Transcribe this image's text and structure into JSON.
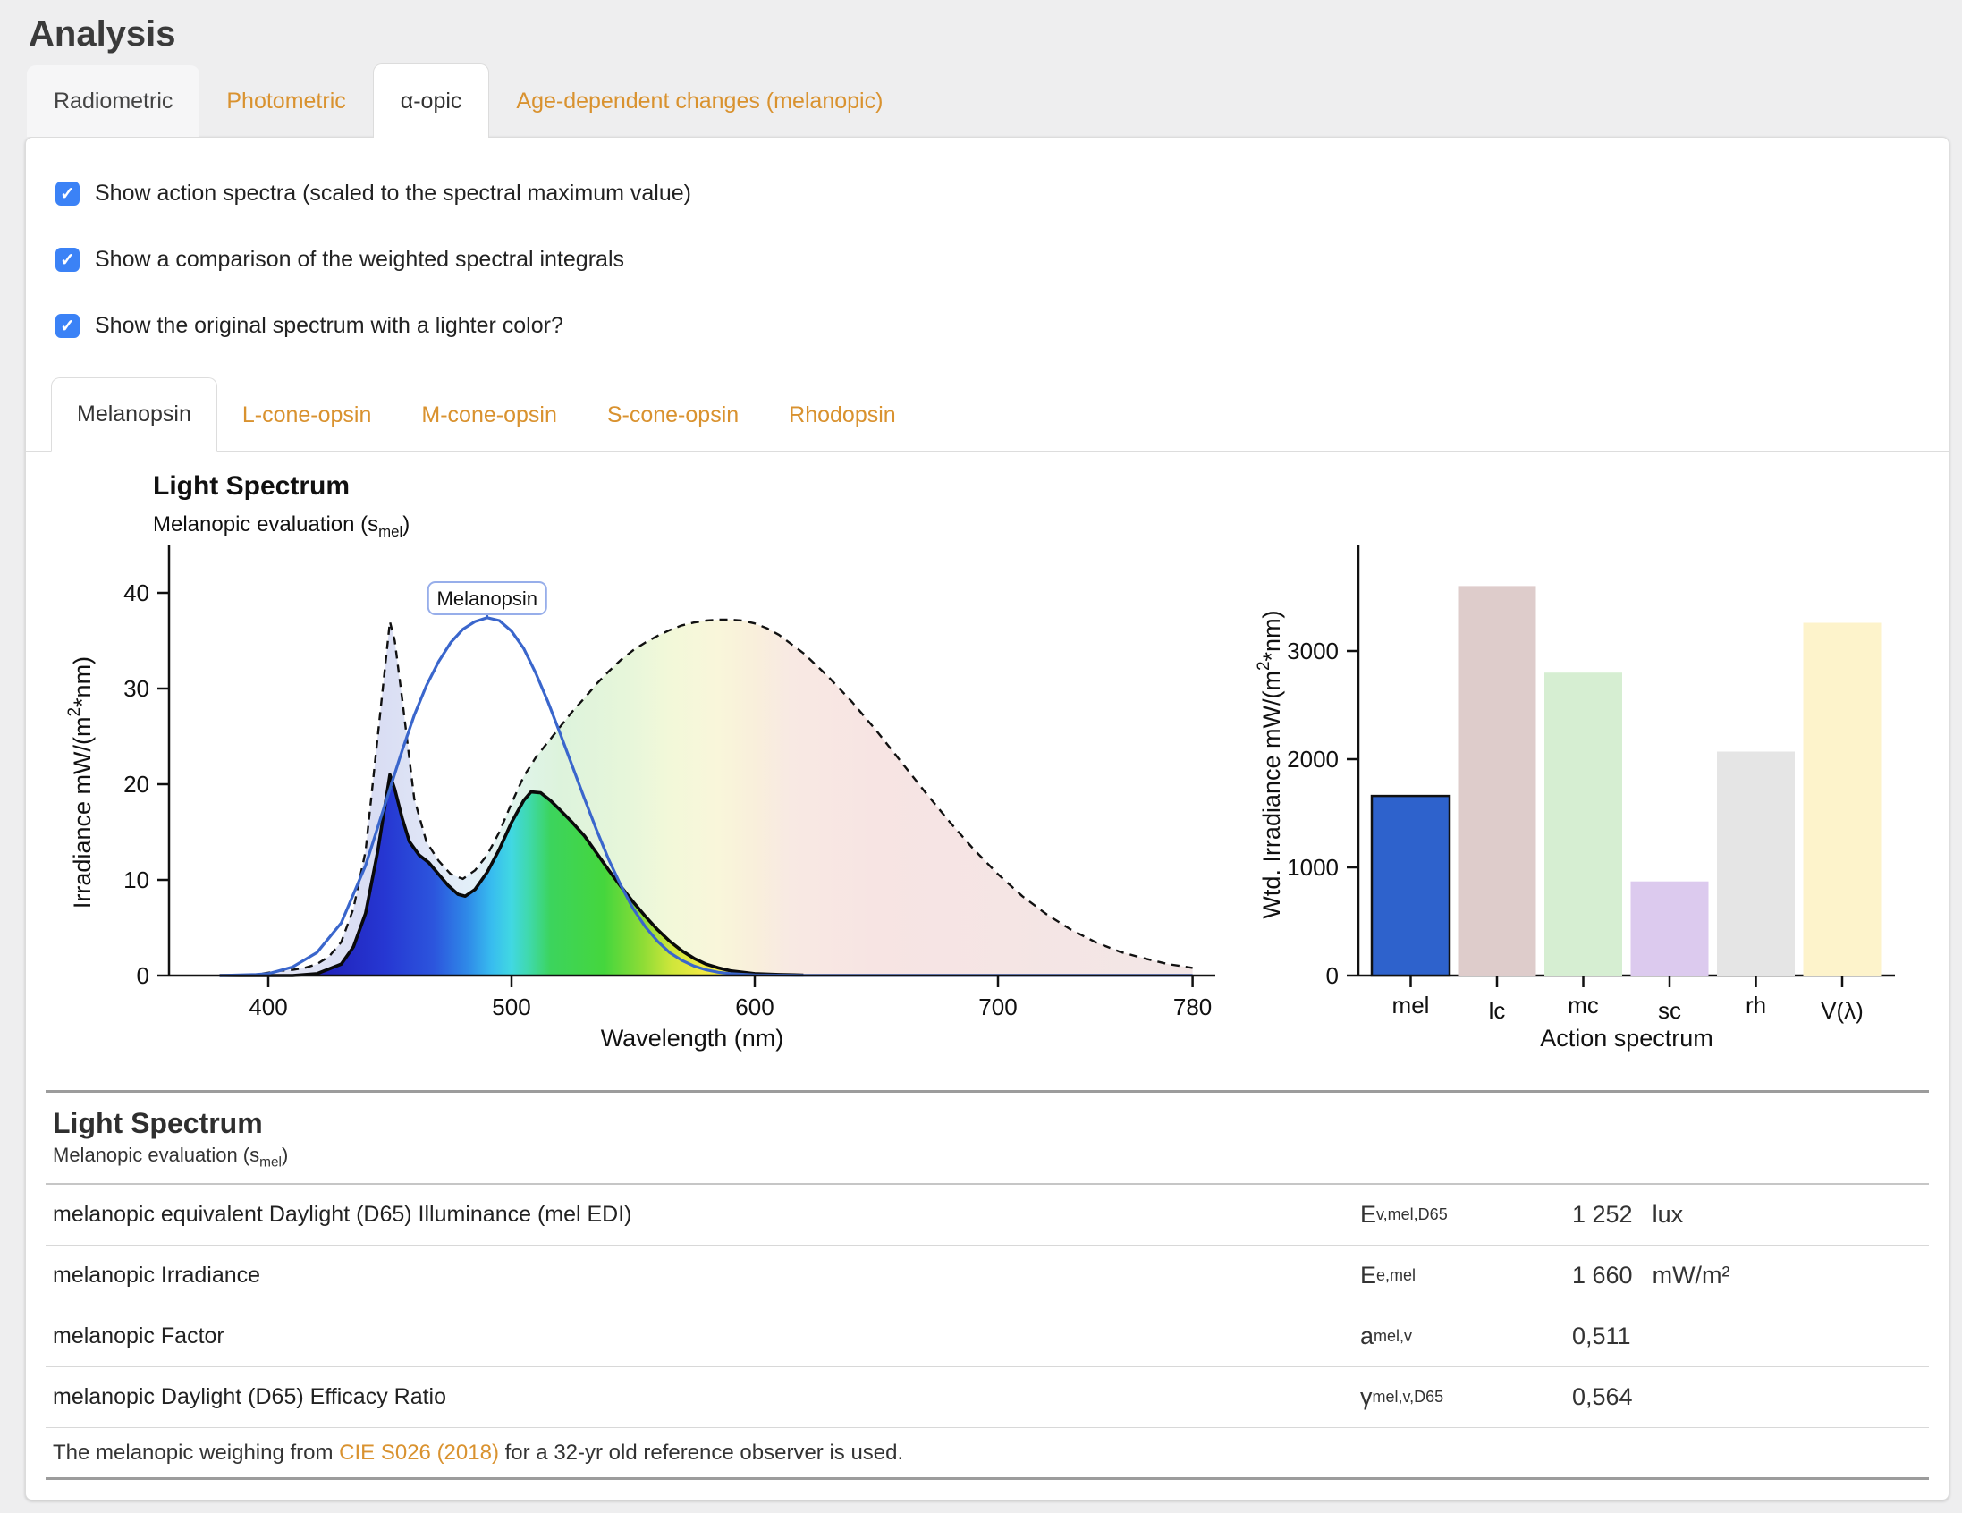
{
  "page": {
    "title": "Analysis"
  },
  "colors": {
    "accent_orange": "#d9922f",
    "checkbox_blue": "#3b82f6",
    "mel_line_blue": "#3a66cc",
    "annotation_text_blue": "#6d8ee2",
    "annotation_border_blue": "#97aeea",
    "page_bg": "#eeeeef"
  },
  "tabs": {
    "items": [
      {
        "label": "Radiometric",
        "state": "hovered"
      },
      {
        "label": "Photometric",
        "state": "link"
      },
      {
        "label": "α-opic",
        "state": "active"
      },
      {
        "label": "Age-dependent changes (melanopic)",
        "state": "link"
      }
    ]
  },
  "checkboxes": [
    {
      "label": "Show action spectra (scaled to the spectral maximum value)",
      "checked": true,
      "mark": "✓"
    },
    {
      "label": "Show a comparison of the weighted spectral integrals",
      "checked": true,
      "mark": "✓"
    },
    {
      "label": "Show the original spectrum with a lighter color?",
      "checked": true,
      "mark": "✓"
    }
  ],
  "subtabs": {
    "items": [
      {
        "label": "Melanopsin",
        "state": "active"
      },
      {
        "label": "L-cone-opsin",
        "state": "link"
      },
      {
        "label": "M-cone-opsin",
        "state": "link"
      },
      {
        "label": "S-cone-opsin",
        "state": "link"
      },
      {
        "label": "Rhodopsin",
        "state": "link"
      }
    ]
  },
  "chart_data": [
    {
      "type": "area",
      "title": "Light Spectrum",
      "subtitle_pre": "Melanopic evaluation (s",
      "subtitle_sub": "mel",
      "subtitle_post": ")",
      "xlabel": "Wavelength (nm)",
      "ylabel": "Irradiance  mW/(m²*nm)",
      "xlim": [
        378,
        800
      ],
      "ylim": [
        0,
        43
      ],
      "xticks": [
        400,
        500,
        600,
        700,
        780
      ],
      "yticks": [
        0,
        10,
        20,
        30,
        40
      ],
      "annotation": {
        "label": "Melanopsin",
        "x": 490
      },
      "series": [
        {
          "name": "original_spectrum",
          "line": "dashed-black",
          "fill": "pastel-spectral",
          "points": [
            [
              380,
              0
            ],
            [
              395,
              0.1
            ],
            [
              400,
              0.3
            ],
            [
              405,
              0.5
            ],
            [
              410,
              0.6
            ],
            [
              415,
              0.8
            ],
            [
              420,
              1.2
            ],
            [
              425,
              2
            ],
            [
              430,
              3.5
            ],
            [
              435,
              7
            ],
            [
              440,
              13
            ],
            [
              445,
              25
            ],
            [
              450,
              37
            ],
            [
              452,
              35
            ],
            [
              455,
              29
            ],
            [
              460,
              18.5
            ],
            [
              465,
              14
            ],
            [
              470,
              12
            ],
            [
              475,
              10.6
            ],
            [
              480,
              10.1
            ],
            [
              485,
              11
            ],
            [
              490,
              12.6
            ],
            [
              495,
              15
            ],
            [
              500,
              18
            ],
            [
              505,
              20.8
            ],
            [
              510,
              22.8
            ],
            [
              515,
              24.4
            ],
            [
              520,
              26
            ],
            [
              525,
              27.6
            ],
            [
              530,
              29
            ],
            [
              535,
              30.5
            ],
            [
              540,
              31.8
            ],
            [
              545,
              33
            ],
            [
              550,
              34
            ],
            [
              555,
              34.8
            ],
            [
              560,
              35.5
            ],
            [
              565,
              36.1
            ],
            [
              570,
              36.6
            ],
            [
              575,
              36.9
            ],
            [
              580,
              37.1
            ],
            [
              585,
              37.2
            ],
            [
              590,
              37.2
            ],
            [
              595,
              37.1
            ],
            [
              600,
              36.8
            ],
            [
              605,
              36.3
            ],
            [
              610,
              35.6
            ],
            [
              620,
              33.7
            ],
            [
              630,
              31.3
            ],
            [
              640,
              28.6
            ],
            [
              650,
              25.6
            ],
            [
              660,
              22.4
            ],
            [
              670,
              19.2
            ],
            [
              680,
              16.1
            ],
            [
              690,
              13.2
            ],
            [
              700,
              10.6
            ],
            [
              710,
              8.3
            ],
            [
              720,
              6.4
            ],
            [
              730,
              4.8
            ],
            [
              740,
              3.5
            ],
            [
              750,
              2.5
            ],
            [
              760,
              1.8
            ],
            [
              770,
              1.2
            ],
            [
              780,
              0.8
            ]
          ]
        },
        {
          "name": "weighted_spectrum",
          "line": "solid-black",
          "fill": "vivid-spectral",
          "points": [
            [
              380,
              0
            ],
            [
              410,
              0
            ],
            [
              420,
              0.2
            ],
            [
              430,
              1.2
            ],
            [
              435,
              3
            ],
            [
              440,
              6.5
            ],
            [
              445,
              13
            ],
            [
              450,
              21
            ],
            [
              452,
              19.5
            ],
            [
              455,
              16.5
            ],
            [
              458,
              14
            ],
            [
              462,
              12.6
            ],
            [
              466,
              11.8
            ],
            [
              470,
              10.6
            ],
            [
              474,
              9.4
            ],
            [
              478,
              8.5
            ],
            [
              481,
              8.3
            ],
            [
              485,
              9
            ],
            [
              490,
              10.8
            ],
            [
              495,
              13.2
            ],
            [
              500,
              16
            ],
            [
              505,
              18.3
            ],
            [
              508,
              19.2
            ],
            [
              512,
              19.1
            ],
            [
              516,
              18.3
            ],
            [
              520,
              17.3
            ],
            [
              525,
              16
            ],
            [
              530,
              14.6
            ],
            [
              535,
              12.8
            ],
            [
              540,
              11
            ],
            [
              545,
              9.3
            ],
            [
              550,
              7.7
            ],
            [
              555,
              6.2
            ],
            [
              560,
              4.8
            ],
            [
              565,
              3.6
            ],
            [
              570,
              2.6
            ],
            [
              575,
              1.8
            ],
            [
              580,
              1.2
            ],
            [
              585,
              0.8
            ],
            [
              590,
              0.5
            ],
            [
              600,
              0.2
            ],
            [
              610,
              0.1
            ],
            [
              620,
              0.05
            ],
            [
              700,
              0
            ],
            [
              780,
              0
            ]
          ]
        },
        {
          "name": "melanopsin_action_spectrum",
          "line": "solid-blue",
          "fill": "none",
          "points": [
            [
              380,
              0
            ],
            [
              395,
              0.1
            ],
            [
              400,
              0.2
            ],
            [
              410,
              0.9
            ],
            [
              420,
              2.4
            ],
            [
              430,
              5.5
            ],
            [
              440,
              11.5
            ],
            [
              450,
              19.5
            ],
            [
              455,
              23.5
            ],
            [
              460,
              27.2
            ],
            [
              465,
              30.3
            ],
            [
              470,
              32.8
            ],
            [
              475,
              34.8
            ],
            [
              480,
              36.2
            ],
            [
              485,
              37
            ],
            [
              490,
              37.4
            ],
            [
              495,
              37.1
            ],
            [
              500,
              36
            ],
            [
              505,
              34.2
            ],
            [
              510,
              31.6
            ],
            [
              515,
              28.6
            ],
            [
              520,
              25.3
            ],
            [
              525,
              21.9
            ],
            [
              530,
              18.5
            ],
            [
              535,
              15.2
            ],
            [
              540,
              12.1
            ],
            [
              545,
              9.4
            ],
            [
              550,
              7
            ],
            [
              555,
              5.1
            ],
            [
              560,
              3.6
            ],
            [
              565,
              2.4
            ],
            [
              570,
              1.6
            ],
            [
              575,
              1
            ],
            [
              580,
              0.6
            ],
            [
              585,
              0.35
            ],
            [
              590,
              0.2
            ],
            [
              600,
              0.07
            ],
            [
              620,
              0.02
            ],
            [
              780,
              0.02
            ]
          ]
        }
      ]
    },
    {
      "type": "bar",
      "categories": [
        "mel",
        "lc",
        "mc",
        "sc",
        "rh",
        "V(λ)"
      ],
      "values": [
        1660,
        3600,
        2800,
        870,
        2070,
        3260
      ],
      "bar_colors": [
        "#2e62cc",
        "#decccb",
        "#d6eed2",
        "#dccaee",
        "#e5e5e5",
        "#fdf3cb"
      ],
      "bar_outlines": [
        "#111111",
        "none",
        "none",
        "none",
        "none",
        "none"
      ],
      "xlabel": "Action spectrum",
      "ylabel": "Wtd. Irradiance  mW/(m²*nm)",
      "ylim": [
        0,
        3950
      ],
      "yticks": [
        0,
        1000,
        2000,
        3000
      ]
    }
  ],
  "table": {
    "title": "Light Spectrum",
    "subtitle_pre": "Melanopic evaluation (s",
    "subtitle_sub": "mel",
    "subtitle_post": ")",
    "rows": [
      {
        "label": "melanopic equivalent Daylight (D65) Illuminance (mel EDI)",
        "symbol_base": "E",
        "symbol_sub": "v,mel,D65",
        "value": "1 252",
        "unit": "lux"
      },
      {
        "label": "melanopic Irradiance",
        "symbol_base": "E",
        "symbol_sub": "e,mel",
        "value": "1 660",
        "unit": "mW/m²"
      },
      {
        "label": "melanopic Factor",
        "symbol_base": "a",
        "symbol_sub": "mel,v",
        "value": "0,511",
        "unit": ""
      },
      {
        "label": "melanopic Daylight (D65) Efficacy Ratio",
        "symbol_base": "γ",
        "symbol_sub": "mel,v,D65",
        "value": "0,564",
        "unit": ""
      }
    ],
    "footer": {
      "pre": "The melanopic weighing from ",
      "link": "CIE S026 (2018)",
      "post": " for a 32-yr old reference observer is used."
    }
  }
}
